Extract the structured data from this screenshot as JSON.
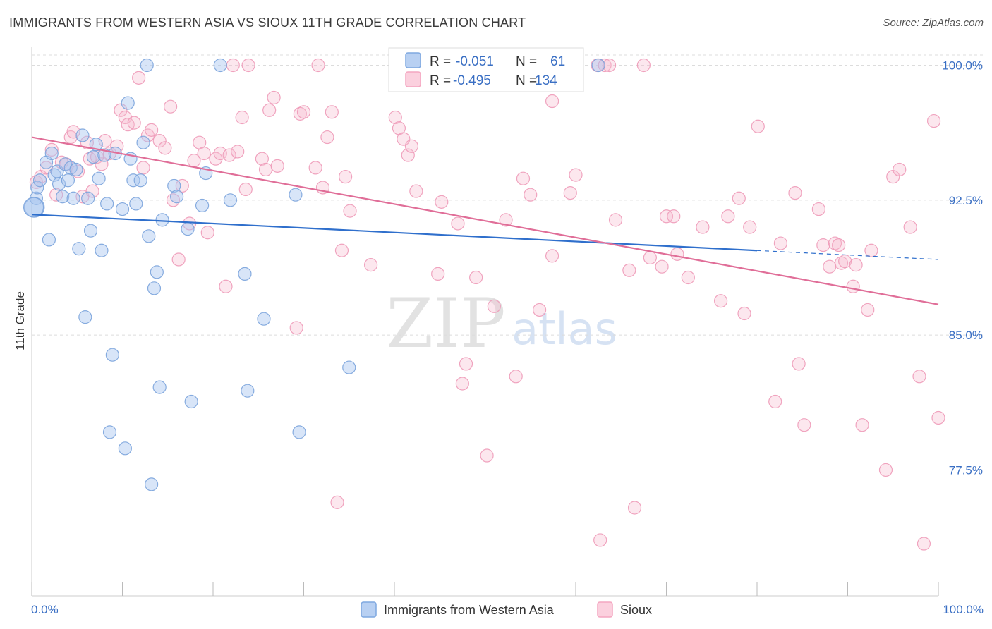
{
  "title": "IMMIGRANTS FROM WESTERN ASIA VS SIOUX 11TH GRADE CORRELATION CHART",
  "source": "Source: ZipAtlas.com",
  "watermark": {
    "zip": "ZIP",
    "atlas": "atlas"
  },
  "chart_data": {
    "type": "scatter",
    "title": "IMMIGRANTS FROM WESTERN ASIA VS SIOUX 11TH GRADE CORRELATION CHART",
    "xlabel": "",
    "ylabel": "11th Grade",
    "xlim": [
      0,
      100
    ],
    "ylim": [
      70.5,
      101
    ],
    "x_tick_labels": [
      "0.0%",
      "100.0%"
    ],
    "y_ticks": [
      77.5,
      85.0,
      92.5,
      100.0
    ],
    "y_tick_labels": [
      "77.5%",
      "85.0%",
      "92.5%",
      "100.0%"
    ],
    "grid": true,
    "legend_position": "bottom",
    "series": [
      {
        "name": "Immigrants from Western Asia",
        "color": "#7fa8e0",
        "line_color": "#2f6fcc",
        "R": "-0.051",
        "N": "61",
        "trend": {
          "x0": 0,
          "y0": 91.7,
          "x1": 80,
          "y1": 89.7,
          "dash_x1": 100,
          "dash_y1": 89.2
        },
        "points": [
          [
            0.3,
            92.1
          ],
          [
            0.5,
            92.6
          ],
          [
            0.6,
            93.2
          ],
          [
            0.9,
            93.6
          ],
          [
            1.6,
            94.6
          ],
          [
            1.9,
            90.3
          ],
          [
            2.2,
            95.1
          ],
          [
            2.5,
            93.9
          ],
          [
            2.8,
            94.1
          ],
          [
            3.0,
            93.4
          ],
          [
            3.4,
            92.7
          ],
          [
            3.7,
            94.5
          ],
          [
            4.0,
            93.6
          ],
          [
            4.3,
            94.3
          ],
          [
            4.6,
            92.6
          ],
          [
            4.9,
            94.2
          ],
          [
            5.2,
            89.8
          ],
          [
            5.6,
            96.1
          ],
          [
            5.9,
            86.0
          ],
          [
            6.2,
            92.6
          ],
          [
            6.5,
            90.8
          ],
          [
            6.8,
            94.9
          ],
          [
            7.1,
            95.6
          ],
          [
            7.4,
            93.7
          ],
          [
            7.7,
            89.7
          ],
          [
            8.0,
            95.0
          ],
          [
            8.3,
            92.3
          ],
          [
            8.6,
            79.6
          ],
          [
            8.9,
            83.9
          ],
          [
            9.2,
            95.1
          ],
          [
            10.0,
            92.0
          ],
          [
            10.3,
            78.7
          ],
          [
            10.6,
            97.9
          ],
          [
            10.9,
            94.8
          ],
          [
            11.2,
            93.6
          ],
          [
            11.5,
            92.3
          ],
          [
            12.0,
            93.6
          ],
          [
            12.3,
            95.7
          ],
          [
            12.7,
            100.0
          ],
          [
            12.9,
            90.5
          ],
          [
            13.2,
            76.7
          ],
          [
            13.5,
            87.6
          ],
          [
            13.8,
            88.5
          ],
          [
            14.1,
            82.1
          ],
          [
            14.4,
            91.4
          ],
          [
            15.7,
            93.3
          ],
          [
            16.0,
            92.7
          ],
          [
            17.2,
            90.9
          ],
          [
            17.6,
            81.3
          ],
          [
            18.8,
            92.2
          ],
          [
            19.2,
            94.0
          ],
          [
            20.8,
            100.0
          ],
          [
            21.9,
            92.5
          ],
          [
            23.5,
            88.4
          ],
          [
            23.8,
            81.9
          ],
          [
            25.6,
            85.9
          ],
          [
            29.1,
            92.8
          ],
          [
            29.5,
            79.6
          ],
          [
            35.0,
            83.2
          ],
          [
            62.5,
            100.0
          ],
          [
            0.2,
            92.1
          ]
        ]
      },
      {
        "name": "Sioux",
        "color": "#f4a6c0",
        "line_color": "#e06e98",
        "R": "-0.495",
        "N": "134",
        "trend": {
          "x0": 0,
          "y0": 96.0,
          "x1": 100,
          "y1": 86.7
        },
        "points": [
          [
            0.5,
            93.5
          ],
          [
            1.0,
            93.8
          ],
          [
            1.6,
            94.3
          ],
          [
            2.2,
            95.3
          ],
          [
            2.7,
            92.8
          ],
          [
            3.3,
            94.6
          ],
          [
            3.8,
            94.5
          ],
          [
            4.3,
            96.0
          ],
          [
            4.6,
            96.3
          ],
          [
            5.1,
            94.1
          ],
          [
            5.6,
            92.7
          ],
          [
            6.1,
            95.7
          ],
          [
            6.4,
            94.8
          ],
          [
            6.7,
            93.0
          ],
          [
            7.2,
            94.9
          ],
          [
            7.7,
            94.5
          ],
          [
            8.1,
            95.8
          ],
          [
            8.6,
            95.1
          ],
          [
            9.4,
            95.5
          ],
          [
            9.8,
            97.5
          ],
          [
            10.3,
            97.1
          ],
          [
            10.6,
            96.7
          ],
          [
            11.3,
            96.8
          ],
          [
            11.8,
            99.3
          ],
          [
            12.3,
            94.3
          ],
          [
            12.8,
            96.1
          ],
          [
            13.2,
            96.4
          ],
          [
            14.1,
            95.8
          ],
          [
            14.7,
            95.4
          ],
          [
            15.3,
            97.7
          ],
          [
            15.6,
            92.5
          ],
          [
            16.2,
            89.2
          ],
          [
            16.6,
            93.3
          ],
          [
            17.4,
            91.2
          ],
          [
            17.9,
            94.7
          ],
          [
            18.5,
            95.7
          ],
          [
            19.0,
            95.1
          ],
          [
            19.4,
            90.7
          ],
          [
            20.3,
            94.8
          ],
          [
            20.8,
            95.1
          ],
          [
            21.4,
            87.7
          ],
          [
            21.8,
            95.0
          ],
          [
            22.2,
            100.0
          ],
          [
            22.7,
            95.2
          ],
          [
            23.2,
            97.1
          ],
          [
            23.6,
            93.1
          ],
          [
            23.9,
            100.0
          ],
          [
            25.4,
            94.8
          ],
          [
            25.8,
            94.2
          ],
          [
            26.2,
            97.5
          ],
          [
            26.7,
            98.2
          ],
          [
            27.1,
            94.4
          ],
          [
            29.2,
            85.4
          ],
          [
            29.6,
            97.3
          ],
          [
            30.0,
            97.4
          ],
          [
            31.3,
            94.3
          ],
          [
            31.6,
            100.0
          ],
          [
            32.1,
            93.2
          ],
          [
            32.6,
            96.0
          ],
          [
            33.1,
            97.4
          ],
          [
            33.7,
            75.7
          ],
          [
            34.2,
            89.7
          ],
          [
            34.6,
            93.8
          ],
          [
            35.1,
            91.9
          ],
          [
            37.4,
            88.9
          ],
          [
            40.1,
            97.1
          ],
          [
            40.5,
            96.5
          ],
          [
            41.0,
            95.9
          ],
          [
            41.5,
            95.0
          ],
          [
            41.9,
            95.5
          ],
          [
            42.4,
            93.0
          ],
          [
            44.8,
            88.4
          ],
          [
            45.2,
            92.4
          ],
          [
            47.0,
            91.2
          ],
          [
            47.5,
            82.3
          ],
          [
            47.9,
            83.4
          ],
          [
            49.0,
            88.2
          ],
          [
            50.2,
            78.3
          ],
          [
            51.0,
            86.6
          ],
          [
            52.3,
            91.4
          ],
          [
            53.4,
            82.7
          ],
          [
            54.2,
            93.7
          ],
          [
            55.0,
            92.8
          ],
          [
            56.0,
            86.4
          ],
          [
            57.4,
            98.0
          ],
          [
            57.4,
            89.4
          ],
          [
            59.4,
            92.9
          ],
          [
            60.0,
            93.9
          ],
          [
            62.4,
            100.0
          ],
          [
            62.7,
            73.6
          ],
          [
            63.2,
            100.0
          ],
          [
            63.7,
            100.0
          ],
          [
            64.4,
            91.4
          ],
          [
            65.9,
            88.6
          ],
          [
            66.5,
            75.4
          ],
          [
            67.5,
            100.0
          ],
          [
            68.2,
            89.3
          ],
          [
            69.5,
            88.8
          ],
          [
            70.0,
            91.6
          ],
          [
            70.8,
            91.6
          ],
          [
            71.2,
            89.5
          ],
          [
            72.4,
            88.2
          ],
          [
            74.0,
            91.0
          ],
          [
            76.0,
            86.9
          ],
          [
            76.8,
            91.6
          ],
          [
            78.0,
            92.6
          ],
          [
            78.6,
            86.2
          ],
          [
            79.2,
            91.0
          ],
          [
            80.1,
            96.6
          ],
          [
            82.0,
            81.3
          ],
          [
            82.6,
            90.1
          ],
          [
            84.2,
            92.9
          ],
          [
            84.6,
            83.4
          ],
          [
            85.2,
            80.0
          ],
          [
            86.8,
            92.0
          ],
          [
            87.3,
            90.0
          ],
          [
            88.0,
            88.8
          ],
          [
            88.6,
            90.1
          ],
          [
            89.0,
            90.0
          ],
          [
            89.3,
            89.0
          ],
          [
            89.7,
            89.1
          ],
          [
            90.6,
            87.7
          ],
          [
            90.9,
            88.9
          ],
          [
            91.6,
            80.0
          ],
          [
            92.2,
            86.4
          ],
          [
            92.6,
            89.7
          ],
          [
            94.2,
            77.5
          ],
          [
            95.0,
            93.8
          ],
          [
            95.7,
            94.2
          ],
          [
            96.9,
            91.0
          ],
          [
            97.9,
            82.7
          ],
          [
            98.4,
            73.4
          ],
          [
            99.5,
            96.9
          ],
          [
            100.0,
            80.4
          ]
        ]
      }
    ]
  }
}
